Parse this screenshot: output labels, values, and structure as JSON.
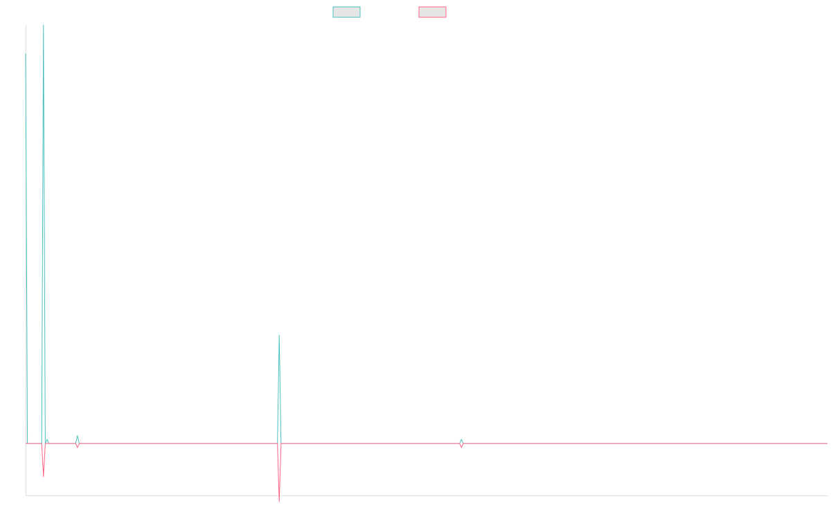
{
  "chart_data": {
    "type": "line",
    "title": "",
    "xlabel": "",
    "ylabel": "",
    "grid": false,
    "legend_position": "top-center",
    "x": [
      0,
      1,
      2,
      3,
      4,
      5,
      6,
      7,
      8,
      9,
      10,
      11,
      12,
      13,
      14,
      15,
      16,
      17,
      18,
      19,
      20,
      21,
      22,
      23,
      24,
      25,
      26,
      27,
      28,
      29,
      30,
      31,
      32,
      33,
      34,
      35,
      36,
      37,
      38,
      39,
      40,
      41,
      42,
      43,
      44,
      45,
      46,
      47,
      48,
      49,
      50,
      51,
      52,
      53,
      54,
      55,
      56,
      57,
      58,
      59,
      60,
      61,
      62,
      63,
      64,
      65,
      66,
      67,
      68,
      69,
      70,
      71,
      72,
      73,
      74,
      75,
      76,
      77,
      78,
      79,
      80,
      81,
      82,
      83,
      84,
      85,
      86,
      87,
      88,
      89,
      90,
      91,
      92,
      93,
      94,
      95,
      96,
      97,
      98,
      99,
      100,
      101,
      102,
      103,
      104,
      105,
      106,
      107,
      108,
      109,
      110,
      111,
      112,
      113,
      114,
      115,
      116,
      117,
      118,
      119,
      120,
      121,
      122,
      123,
      124,
      125,
      126,
      127,
      128,
      129,
      130,
      131,
      132,
      133,
      134,
      135,
      136,
      137,
      138,
      139,
      140,
      141,
      142,
      143,
      144,
      145,
      146,
      147,
      148,
      149,
      150,
      151,
      152,
      153,
      154,
      155,
      156,
      157,
      158,
      159,
      160,
      161,
      162,
      163,
      164,
      165,
      166,
      167,
      168,
      169,
      170,
      171,
      172,
      173,
      174,
      175,
      176,
      177,
      178,
      179,
      180,
      181,
      182,
      183,
      184,
      185,
      186,
      187,
      188,
      189,
      190,
      191,
      192,
      193,
      194,
      195,
      196,
      197,
      198,
      199,
      200,
      201,
      202,
      203,
      204,
      205,
      206,
      207,
      208,
      209,
      210,
      211,
      212,
      213,
      214,
      215,
      216,
      217,
      218,
      219,
      220,
      221,
      222,
      223,
      224,
      225,
      226,
      227,
      228,
      229,
      230,
      231,
      232,
      233,
      234,
      235,
      236,
      237,
      238,
      239,
      240,
      241,
      242,
      243,
      244,
      245,
      246,
      247,
      248,
      249,
      250,
      251,
      252,
      253,
      254,
      255,
      256,
      257,
      258,
      259,
      260,
      261,
      262,
      263,
      264,
      265,
      266,
      267,
      268,
      269,
      270,
      271,
      272,
      273,
      274,
      275,
      276,
      277,
      278,
      279,
      280,
      281,
      282,
      283,
      284,
      285,
      286,
      287,
      288,
      289,
      290,
      291,
      292,
      293,
      294,
      295,
      296,
      297,
      298,
      299,
      300,
      301,
      302,
      303,
      304,
      305,
      306,
      307,
      308,
      309,
      310,
      311,
      312,
      313,
      314,
      315,
      316,
      317,
      318,
      319,
      320,
      321,
      322,
      323,
      324,
      325,
      326,
      327,
      328,
      329,
      330,
      331,
      332,
      333,
      334,
      335,
      336,
      337,
      338,
      339,
      340,
      341,
      342,
      343,
      344,
      345,
      346,
      347,
      348,
      349,
      350,
      351,
      352,
      353,
      354,
      355,
      356,
      357,
      358,
      359,
      360,
      361,
      362,
      363,
      364,
      365,
      366,
      367,
      368,
      369,
      370,
      371,
      372,
      373,
      374,
      375,
      376,
      377,
      378,
      379,
      380,
      381,
      382,
      383,
      384,
      385,
      386,
      387,
      388,
      389,
      390,
      391,
      392,
      393,
      394,
      395,
      396,
      397,
      398,
      399,
      400,
      401,
      402,
      403,
      404,
      405,
      406,
      407,
      408,
      409,
      410,
      411,
      412,
      413,
      414,
      415,
      416,
      417,
      418,
      419,
      420,
      421,
      422,
      423,
      424,
      425,
      426,
      427,
      428,
      429,
      430,
      431,
      432,
      433,
      434,
      435,
      436,
      437,
      438,
      439,
      440,
      441,
      442,
      443,
      444,
      445,
      446,
      447,
      448,
      449
    ],
    "xlim": [
      0,
      449
    ],
    "ylim": [
      -100,
      805
    ],
    "series": [
      {
        "name": "",
        "color": "#4bc0c0",
        "fill": "#e6e6e6",
        "nonzero": [
          [
            0,
            750
          ],
          [
            10,
            805
          ],
          [
            12,
            8
          ],
          [
            29,
            15
          ],
          [
            142,
            208
          ],
          [
            244,
            8
          ]
        ]
      },
      {
        "name": "",
        "color": "#ff6384",
        "fill": "#e6e6e6",
        "nonzero": [
          [
            10,
            -64
          ],
          [
            29,
            -8
          ],
          [
            142,
            -112
          ],
          [
            244,
            -8
          ]
        ]
      }
    ]
  }
}
